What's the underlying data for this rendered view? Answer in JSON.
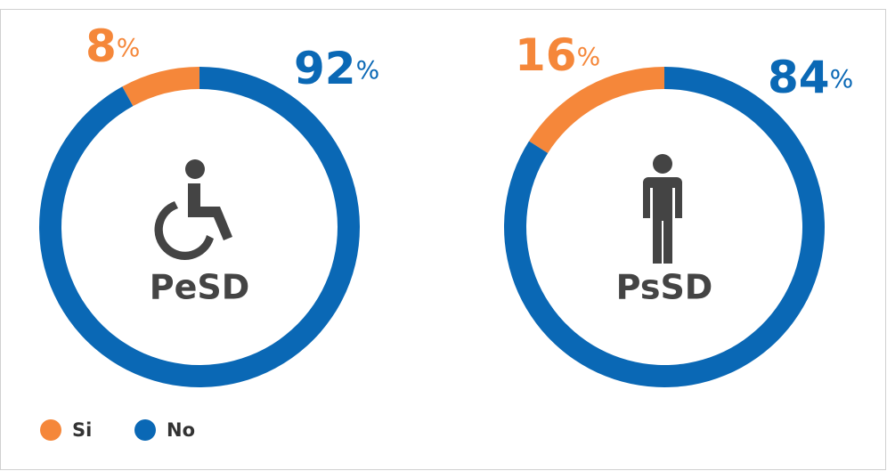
{
  "chart_data": [
    {
      "type": "pie",
      "center_label": "PeSD",
      "values": [
        8,
        92
      ],
      "value_labels": [
        "8%",
        "92%"
      ],
      "colors": [
        "#f5873a",
        "#0a68b5"
      ]
    },
    {
      "type": "pie",
      "center_label": "PsSD",
      "values": [
        16,
        84
      ],
      "value_labels": [
        "16%",
        "84%"
      ],
      "colors": [
        "#f5873a",
        "#0a68b5"
      ]
    }
  ],
  "legend": {
    "items": [
      "Si",
      "No"
    ],
    "colors": [
      "#f5873a",
      "#0a68b5"
    ]
  }
}
